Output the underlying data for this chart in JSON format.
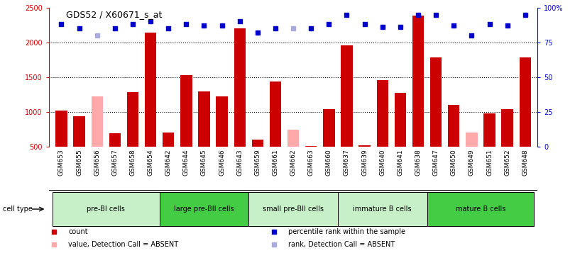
{
  "title": "GDS52 / X60671_s_at",
  "samples": [
    "GSM653",
    "GSM655",
    "GSM656",
    "GSM657",
    "GSM658",
    "GSM654",
    "GSM642",
    "GSM644",
    "GSM645",
    "GSM646",
    "GSM643",
    "GSM659",
    "GSM661",
    "GSM662",
    "GSM663",
    "GSM660",
    "GSM637",
    "GSM639",
    "GSM640",
    "GSM641",
    "GSM638",
    "GSM647",
    "GSM650",
    "GSM649",
    "GSM651",
    "GSM652",
    "GSM648"
  ],
  "counts": [
    1020,
    940,
    1220,
    690,
    1290,
    2140,
    700,
    1530,
    1300,
    1220,
    2200,
    600,
    1440,
    750,
    510,
    1040,
    1960,
    520,
    1460,
    1270,
    2380,
    1780,
    1100,
    700,
    980,
    1040,
    1780
  ],
  "absent_mask": [
    false,
    false,
    true,
    false,
    false,
    false,
    false,
    false,
    false,
    false,
    false,
    false,
    false,
    true,
    false,
    false,
    false,
    false,
    false,
    false,
    false,
    false,
    false,
    true,
    false,
    false,
    false
  ],
  "percentile_ranks": [
    88,
    85,
    80,
    85,
    88,
    90,
    85,
    88,
    87,
    87,
    90,
    82,
    85,
    85,
    85,
    88,
    95,
    88,
    86,
    86,
    95,
    95,
    87,
    80,
    88,
    87,
    95
  ],
  "absent_rank_mask": [
    false,
    false,
    true,
    false,
    false,
    false,
    false,
    false,
    false,
    false,
    false,
    false,
    false,
    true,
    false,
    false,
    false,
    false,
    false,
    false,
    false,
    false,
    false,
    false,
    false,
    false,
    false
  ],
  "cell_groups": [
    {
      "label": "pre-BI cells",
      "start": 0,
      "end": 6,
      "color": "#c8f0c8"
    },
    {
      "label": "large pre-BII cells",
      "start": 6,
      "end": 11,
      "color": "#44cc44"
    },
    {
      "label": "small pre-BII cells",
      "start": 11,
      "end": 16,
      "color": "#c8f0c8"
    },
    {
      "label": "immature B cells",
      "start": 16,
      "end": 21,
      "color": "#c8f0c8"
    },
    {
      "label": "mature B cells",
      "start": 21,
      "end": 27,
      "color": "#44cc44"
    }
  ],
  "bar_color_present": "#cc0000",
  "bar_color_absent": "#ffaaaa",
  "rank_color_present": "#0000cc",
  "rank_color_absent": "#aaaadd",
  "ylim_low": 500,
  "ylim_high": 2500,
  "yticks": [
    500,
    1000,
    1500,
    2000,
    2500
  ],
  "rank_yticks": [
    0,
    25,
    50,
    75,
    100
  ],
  "rank_yticklabels": [
    "0",
    "25",
    "50",
    "75",
    "100%"
  ],
  "gridlines": [
    1000,
    1500,
    2000
  ],
  "xtick_bg_color": "#cccccc",
  "cell_type_label": "cell type",
  "legend_items": [
    {
      "color": "#cc0000",
      "marker": "s",
      "label": "count"
    },
    {
      "color": "#0000cc",
      "marker": "s",
      "label": "percentile rank within the sample"
    },
    {
      "color": "#ffaaaa",
      "marker": "s",
      "label": "value, Detection Call = ABSENT"
    },
    {
      "color": "#aaaadd",
      "marker": "s",
      "label": "rank, Detection Call = ABSENT"
    }
  ]
}
